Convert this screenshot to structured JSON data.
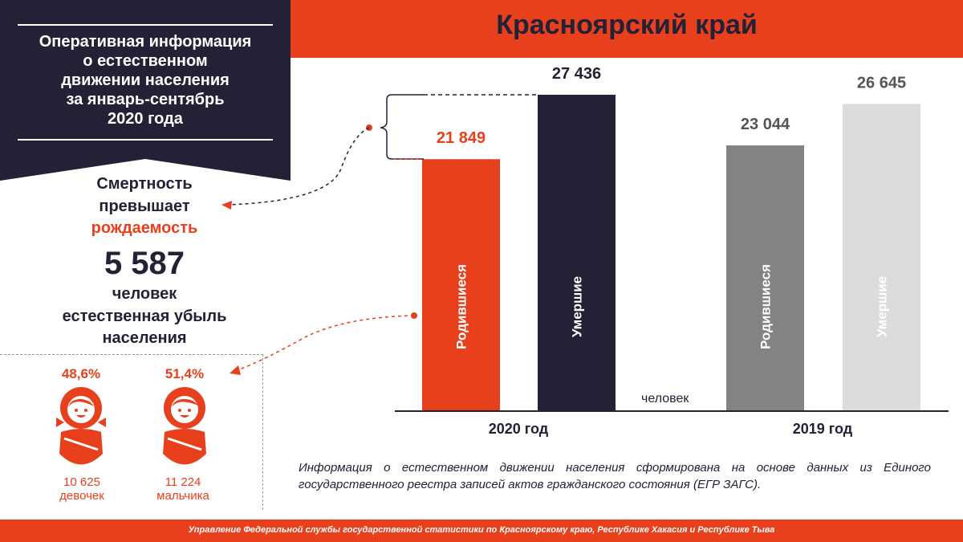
{
  "panel": {
    "title_lines": [
      "Оперативная информация",
      "о естественном",
      "движении населения",
      "за январь-сентябрь",
      "2020 года"
    ]
  },
  "header": {
    "title": "Красноярский край"
  },
  "summary": {
    "line1": "Смертность",
    "line2": "превышает",
    "line3": "рождаемость",
    "loss_value": "5 587",
    "loss_line1": "человек",
    "loss_line2": "естественная убыль",
    "loss_line3": "населения"
  },
  "babies": {
    "girls": {
      "percent": "48,6%",
      "count": "10 625",
      "label": "девочек",
      "icon": "baby-girl-icon"
    },
    "boys": {
      "percent": "51,4%",
      "count": "11 224",
      "label": "мальчика",
      "icon": "baby-boy-icon"
    }
  },
  "chart_data": {
    "type": "bar",
    "unit_label": "человек",
    "ylim": [
      0,
      27436
    ],
    "groups": [
      {
        "year": "2020 год",
        "bars": [
          {
            "name": "Родившиеся",
            "value": 21849,
            "label": "21 849",
            "color": "#e8401c",
            "label_color": "#e8401c"
          },
          {
            "name": "Умершие",
            "value": 27436,
            "label": "27 436",
            "color": "#222136",
            "label_color": "#222136"
          }
        ]
      },
      {
        "year": "2019 год",
        "bars": [
          {
            "name": "Родившиеся",
            "value": 23044,
            "label": "23 044",
            "color": "#838383",
            "label_color": "#555555"
          },
          {
            "name": "Умершие",
            "value": 26645,
            "label": "26 645",
            "color": "#dcdcdc",
            "label_color": "#555555"
          }
        ]
      }
    ]
  },
  "note": "Информация о естественном движении населения сформирована на основе данных из Единого государственного реестра записей актов гражданского состояния (ЕГР ЗАГС).",
  "footer": "Управление Федеральной службы государственной статистики по Красноярскому краю, Республике Хакасия и Республике Тыва",
  "colors": {
    "accent": "#e8401c",
    "dark": "#222136"
  }
}
